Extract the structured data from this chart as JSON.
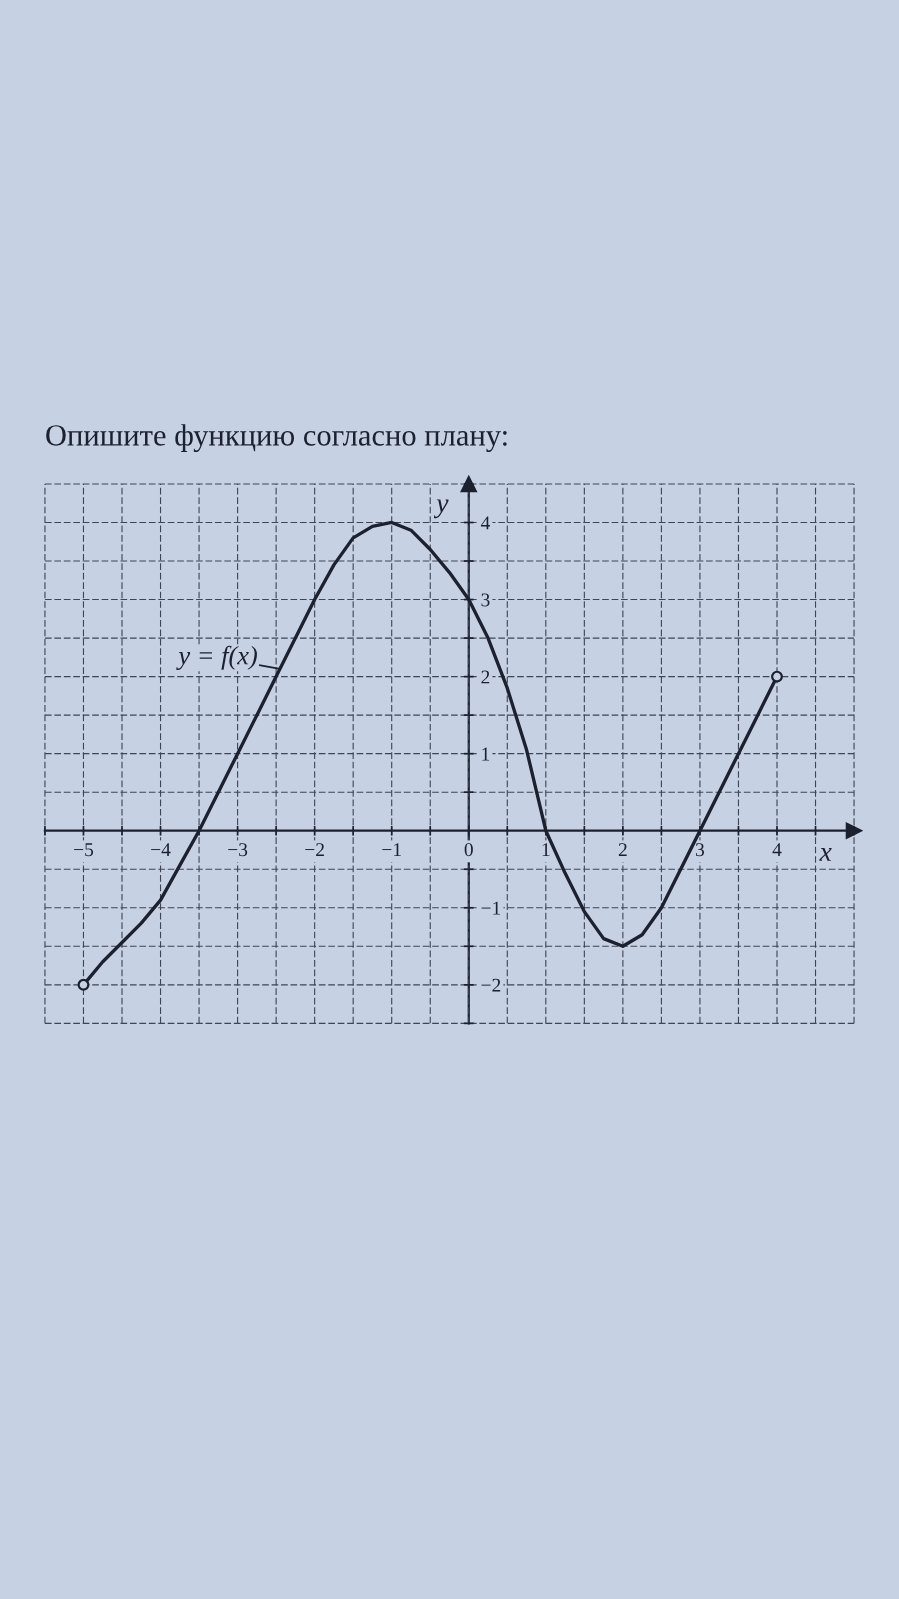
{
  "chart_data": {
    "type": "line",
    "title": "Опишите функцию согласно плану:",
    "xlabel": "x",
    "ylabel": "y",
    "xlim": [
      -5.5,
      5
    ],
    "ylim": [
      -2.5,
      4.5
    ],
    "xticks": [
      {
        "value": -5.5,
        "label": null
      },
      {
        "value": -5,
        "label": "−5"
      },
      {
        "value": -4.5,
        "label": null
      },
      {
        "value": -4,
        "label": "−4"
      },
      {
        "value": -3.5,
        "label": null
      },
      {
        "value": -3,
        "label": "−3"
      },
      {
        "value": -2.5,
        "label": null
      },
      {
        "value": -2,
        "label": "−2"
      },
      {
        "value": -1.5,
        "label": null
      },
      {
        "value": -1,
        "label": "−1"
      },
      {
        "value": -0.5,
        "label": null
      },
      0,
      {
        "value": 0.5,
        "label": null
      },
      1,
      {
        "value": 1.5,
        "label": null
      },
      2,
      {
        "value": 2.5,
        "label": null
      },
      3,
      {
        "value": 3.5,
        "label": null
      },
      4,
      {
        "value": 4.5,
        "label": null
      },
      {
        "value": 5,
        "label": null
      }
    ],
    "yticks": [
      {
        "value": -2.5,
        "label": null
      },
      {
        "value": -2,
        "label": "−2"
      },
      {
        "value": -1.5,
        "label": null
      },
      {
        "value": -1,
        "label": "−1"
      },
      {
        "value": -0.5,
        "label": null
      },
      {
        "value": 0.5,
        "label": null
      },
      1,
      {
        "value": 1.5,
        "label": null
      },
      2,
      {
        "value": 2.5,
        "label": null
      },
      3,
      {
        "value": 3.5,
        "label": null
      },
      4,
      {
        "value": 4.5,
        "label": null
      }
    ],
    "grid": true,
    "series": [
      {
        "color": "#1c2130",
        "x": [
          -5,
          -4.75,
          -4.5,
          -4.25,
          -4,
          -3.75,
          -3.5,
          -3.25,
          -3,
          -2.75,
          -2.5,
          -2.25,
          -2,
          -1.75,
          -1.5,
          -1.25,
          -1,
          -0.75,
          -0.5,
          -0.25,
          0,
          0.25,
          0.5,
          0.75,
          1,
          1.25,
          1.5,
          1.75,
          2,
          2.25,
          2.5,
          2.75,
          3,
          3.25,
          3.5,
          3.75,
          4
        ],
        "values": [
          -2,
          -1.7,
          -1.45,
          -1.2,
          -0.9,
          -0.45,
          0,
          0.5,
          1,
          1.5,
          2,
          2.5,
          3,
          3.45,
          3.8,
          3.95,
          4,
          3.9,
          3.65,
          3.35,
          3,
          2.5,
          1.85,
          1.05,
          0,
          -0.55,
          -1.05,
          -1.4,
          -1.5,
          -1.35,
          -1,
          -0.5,
          0,
          0.5,
          1,
          1.5,
          2
        ]
      },
      {
        "type": "scatter",
        "marker": "circle",
        "color": "#1c2130",
        "x": [
          -5,
          4
        ],
        "values": [
          -2,
          2
        ]
      }
    ],
    "annotations": [
      {
        "text": "y = f(x)",
        "x": -2.45,
        "y": 2.1
      }
    ]
  }
}
